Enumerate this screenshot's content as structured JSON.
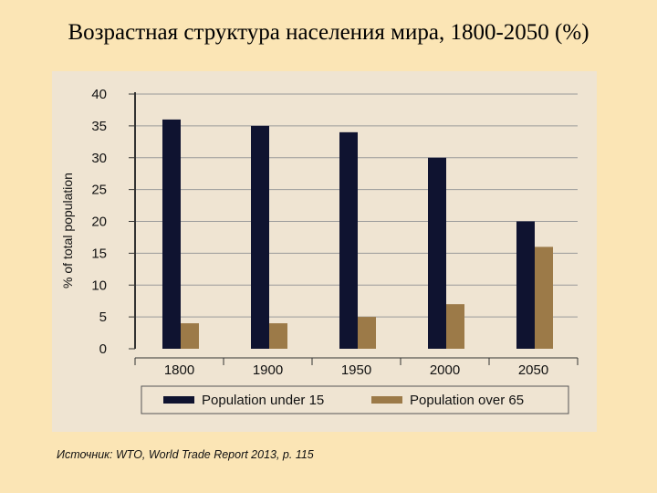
{
  "slide": {
    "title": "Возрастная структура населения мира, 1800-2050 (%)",
    "source": "Источник: WTO, World Trade Report 2013,  p. 115"
  },
  "chart_data": {
    "type": "bar",
    "title": "",
    "xlabel": "",
    "ylabel": "% of total population",
    "categories": [
      "1800",
      "1900",
      "1950",
      "2000",
      "2050"
    ],
    "series": [
      {
        "name": "Population under 15",
        "color": "#0f1330",
        "values": [
          36,
          35,
          34,
          30,
          20
        ]
      },
      {
        "name": "Population over 65",
        "color": "#9c7a48",
        "values": [
          4,
          4,
          5,
          7,
          16
        ]
      }
    ],
    "ylim": [
      0,
      40
    ],
    "yticks": [
      0,
      5,
      10,
      15,
      20,
      25,
      30,
      35,
      40
    ],
    "grid": true,
    "legend": "bottom",
    "background": "#efe4d2"
  }
}
